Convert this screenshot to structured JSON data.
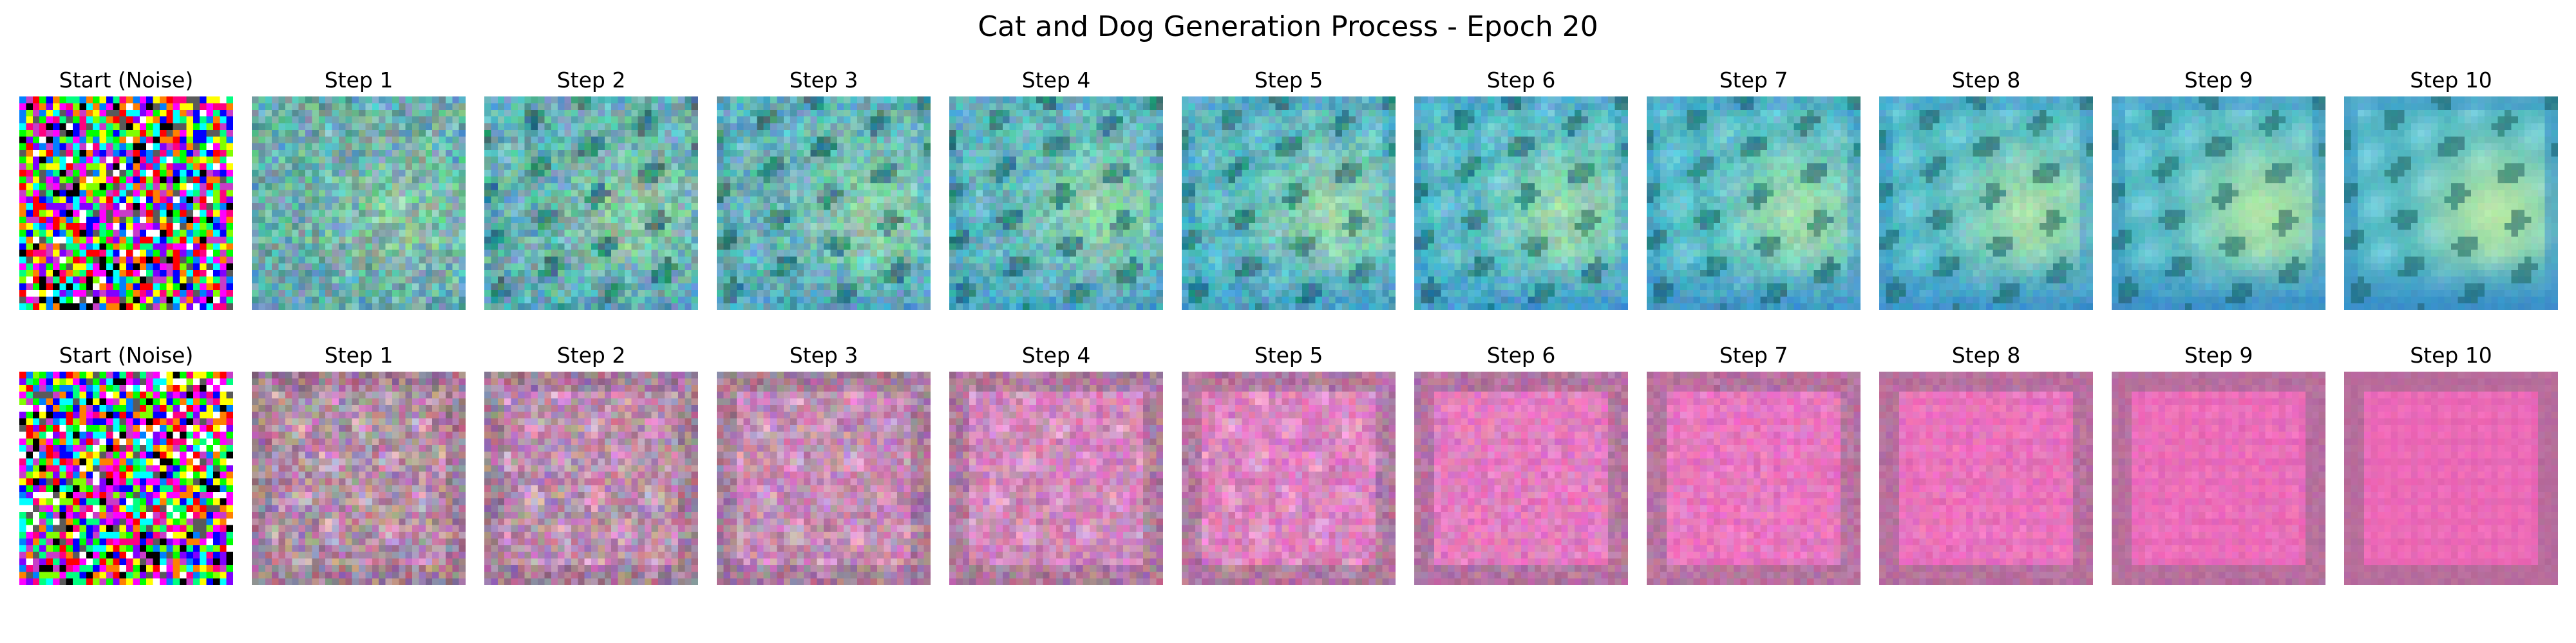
{
  "figure": {
    "title": "Cat and Dog Generation Process - Epoch 20"
  },
  "rows": [
    {
      "theme": "teal-blue",
      "accent_colors": [
        "#6fa8a0",
        "#4fb6c4",
        "#7fd3e6",
        "#c9ef9a",
        "#3a8fc8"
      ],
      "panels": [
        {
          "title": "Start (Noise)",
          "kind": "noise"
        },
        {
          "title": "Step 1",
          "kind": "generated",
          "progress": 0.1
        },
        {
          "title": "Step 2",
          "kind": "generated",
          "progress": 0.2
        },
        {
          "title": "Step 3",
          "kind": "generated",
          "progress": 0.3
        },
        {
          "title": "Step 4",
          "kind": "generated",
          "progress": 0.4
        },
        {
          "title": "Step 5",
          "kind": "generated",
          "progress": 0.5
        },
        {
          "title": "Step 6",
          "kind": "generated",
          "progress": 0.6
        },
        {
          "title": "Step 7",
          "kind": "generated",
          "progress": 0.7
        },
        {
          "title": "Step 8",
          "kind": "generated",
          "progress": 0.8
        },
        {
          "title": "Step 9",
          "kind": "generated",
          "progress": 0.9
        },
        {
          "title": "Step 10",
          "kind": "generated",
          "progress": 1.0
        }
      ]
    },
    {
      "theme": "pink-magenta",
      "accent_colors": [
        "#a88e9a",
        "#e58fd0",
        "#f06ab8",
        "#d95aa8",
        "#8e6f86"
      ],
      "panels": [
        {
          "title": "Start (Noise)",
          "kind": "noise"
        },
        {
          "title": "Step 1",
          "kind": "generated",
          "progress": 0.1
        },
        {
          "title": "Step 2",
          "kind": "generated",
          "progress": 0.2
        },
        {
          "title": "Step 3",
          "kind": "generated",
          "progress": 0.3
        },
        {
          "title": "Step 4",
          "kind": "generated",
          "progress": 0.4
        },
        {
          "title": "Step 5",
          "kind": "generated",
          "progress": 0.5
        },
        {
          "title": "Step 6",
          "kind": "generated",
          "progress": 0.6
        },
        {
          "title": "Step 7",
          "kind": "generated",
          "progress": 0.7
        },
        {
          "title": "Step 8",
          "kind": "generated",
          "progress": 0.8
        },
        {
          "title": "Step 9",
          "kind": "generated",
          "progress": 0.9
        },
        {
          "title": "Step 10",
          "kind": "generated",
          "progress": 1.0
        }
      ]
    }
  ]
}
